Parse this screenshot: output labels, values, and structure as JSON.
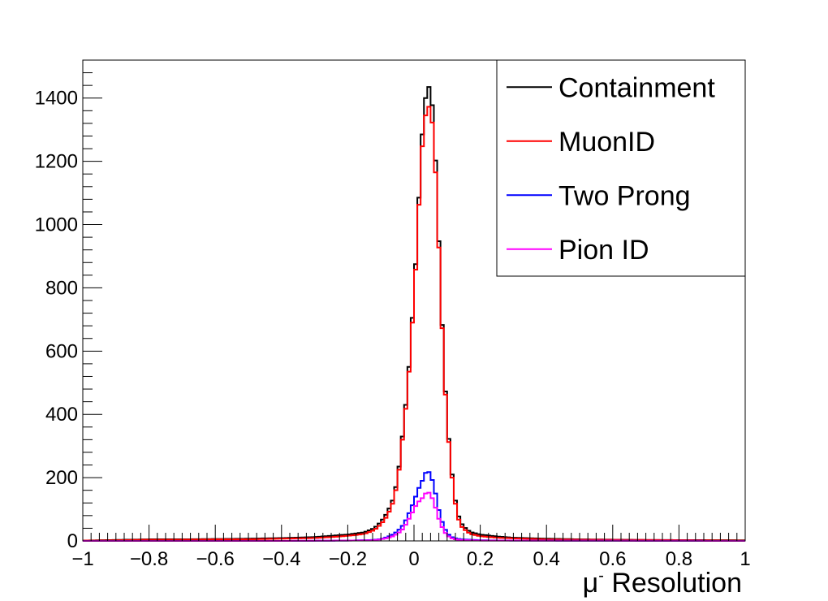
{
  "chart_data": {
    "type": "histogram-step",
    "xlabel": "μ- Resolution",
    "xlabel_base": "μ",
    "xlabel_sup": "-",
    "xlabel_rest": " Resolution",
    "ylabel": "",
    "xlim": [
      -1,
      1
    ],
    "ylim": [
      0,
      1520
    ],
    "bin_width": 0.01,
    "x_ticks": [
      -1,
      -0.8,
      -0.6,
      -0.4,
      -0.2,
      0,
      0.2,
      0.4,
      0.6,
      0.8,
      1
    ],
    "x_tick_labels": [
      "−1",
      "−0.8",
      "−0.6",
      "−0.4",
      "−0.2",
      "0",
      "0.2",
      "0.4",
      "0.6",
      "0.8",
      "1"
    ],
    "y_ticks": [
      0,
      200,
      400,
      600,
      800,
      1000,
      1200,
      1400
    ],
    "y_tick_labels": [
      "0",
      "200",
      "400",
      "600",
      "800",
      "1000",
      "1200",
      "1400"
    ],
    "legend_position": "top-right",
    "series": [
      {
        "name": "Containment",
        "color": "#000000",
        "points": [
          [
            -1.0,
            1
          ],
          [
            -0.9,
            3
          ],
          [
            -0.8,
            5
          ],
          [
            -0.7,
            5
          ],
          [
            -0.6,
            6
          ],
          [
            -0.5,
            7
          ],
          [
            -0.4,
            9
          ],
          [
            -0.3,
            12
          ],
          [
            -0.25,
            16
          ],
          [
            -0.2,
            20
          ],
          [
            -0.15,
            27
          ],
          [
            -0.12,
            40
          ],
          [
            -0.1,
            60
          ],
          [
            -0.08,
            90
          ],
          [
            -0.06,
            140
          ],
          [
            -0.05,
            200
          ],
          [
            -0.04,
            270
          ],
          [
            -0.03,
            390
          ],
          [
            -0.02,
            470
          ],
          [
            -0.01,
            630
          ],
          [
            0.0,
            780
          ],
          [
            0.01,
            970
          ],
          [
            0.02,
            1200
          ],
          [
            0.03,
            1370
          ],
          [
            0.04,
            1430
          ],
          [
            0.05,
            1440
          ],
          [
            0.06,
            1315
          ],
          [
            0.07,
            1090
          ],
          [
            0.08,
            805
          ],
          [
            0.09,
            560
          ],
          [
            0.1,
            385
          ],
          [
            0.11,
            260
          ],
          [
            0.12,
            160
          ],
          [
            0.13,
            95
          ],
          [
            0.14,
            60
          ],
          [
            0.15,
            45
          ],
          [
            0.17,
            28
          ],
          [
            0.2,
            20
          ],
          [
            0.25,
            14
          ],
          [
            0.3,
            10
          ],
          [
            0.4,
            7
          ],
          [
            0.5,
            5
          ],
          [
            0.7,
            3
          ],
          [
            1.0,
            2
          ]
        ]
      },
      {
        "name": "MuonID",
        "color": "#ff0000",
        "points": [
          [
            -1.0,
            1
          ],
          [
            -0.9,
            2
          ],
          [
            -0.8,
            4
          ],
          [
            -0.7,
            4
          ],
          [
            -0.6,
            5
          ],
          [
            -0.5,
            5
          ],
          [
            -0.4,
            7
          ],
          [
            -0.3,
            9
          ],
          [
            -0.25,
            12
          ],
          [
            -0.2,
            16
          ],
          [
            -0.15,
            22
          ],
          [
            -0.12,
            34
          ],
          [
            -0.1,
            52
          ],
          [
            -0.08,
            80
          ],
          [
            -0.06,
            130
          ],
          [
            -0.05,
            190
          ],
          [
            -0.04,
            260
          ],
          [
            -0.03,
            380
          ],
          [
            -0.02,
            455
          ],
          [
            -0.01,
            615
          ],
          [
            0.0,
            765
          ],
          [
            0.01,
            950
          ],
          [
            0.02,
            1175
          ],
          [
            0.03,
            1320
          ],
          [
            0.04,
            1370
          ],
          [
            0.05,
            1375
          ],
          [
            0.06,
            1270
          ],
          [
            0.07,
            1060
          ],
          [
            0.08,
            795
          ],
          [
            0.09,
            550
          ],
          [
            0.1,
            375
          ],
          [
            0.11,
            250
          ],
          [
            0.12,
            150
          ],
          [
            0.13,
            85
          ],
          [
            0.14,
            50
          ],
          [
            0.15,
            38
          ],
          [
            0.17,
            22
          ],
          [
            0.2,
            15
          ],
          [
            0.25,
            10
          ],
          [
            0.3,
            8
          ],
          [
            0.4,
            5
          ],
          [
            0.5,
            4
          ],
          [
            0.7,
            3
          ],
          [
            1.0,
            1
          ]
        ]
      },
      {
        "name": "Two Prong",
        "color": "#0000ff",
        "points": [
          [
            -1.0,
            0
          ],
          [
            -0.4,
            0
          ],
          [
            -0.2,
            1
          ],
          [
            -0.12,
            3
          ],
          [
            -0.1,
            6
          ],
          [
            -0.08,
            12
          ],
          [
            -0.06,
            22
          ],
          [
            -0.04,
            40
          ],
          [
            -0.03,
            55
          ],
          [
            -0.02,
            75
          ],
          [
            -0.01,
            100
          ],
          [
            0.0,
            125
          ],
          [
            0.01,
            155
          ],
          [
            0.02,
            180
          ],
          [
            0.03,
            200
          ],
          [
            0.04,
            230
          ],
          [
            0.05,
            205
          ],
          [
            0.06,
            180
          ],
          [
            0.07,
            120
          ],
          [
            0.08,
            75
          ],
          [
            0.09,
            45
          ],
          [
            0.1,
            25
          ],
          [
            0.11,
            14
          ],
          [
            0.12,
            9
          ],
          [
            0.14,
            5
          ],
          [
            0.2,
            2
          ],
          [
            0.3,
            1
          ],
          [
            1.0,
            0
          ]
        ]
      },
      {
        "name": "Pion ID",
        "color": "#ff00ff",
        "points": [
          [
            -1.0,
            0
          ],
          [
            -0.4,
            0
          ],
          [
            -0.2,
            1
          ],
          [
            -0.12,
            2
          ],
          [
            -0.1,
            5
          ],
          [
            -0.08,
            9
          ],
          [
            -0.06,
            16
          ],
          [
            -0.04,
            30
          ],
          [
            -0.03,
            42
          ],
          [
            -0.02,
            60
          ],
          [
            -0.01,
            80
          ],
          [
            0.0,
            100
          ],
          [
            0.01,
            120
          ],
          [
            0.02,
            130
          ],
          [
            0.03,
            140
          ],
          [
            0.04,
            160
          ],
          [
            0.05,
            145
          ],
          [
            0.06,
            125
          ],
          [
            0.07,
            85
          ],
          [
            0.08,
            55
          ],
          [
            0.09,
            32
          ],
          [
            0.1,
            18
          ],
          [
            0.11,
            10
          ],
          [
            0.12,
            6
          ],
          [
            0.14,
            3
          ],
          [
            0.2,
            1
          ],
          [
            1.0,
            0
          ]
        ]
      }
    ]
  }
}
